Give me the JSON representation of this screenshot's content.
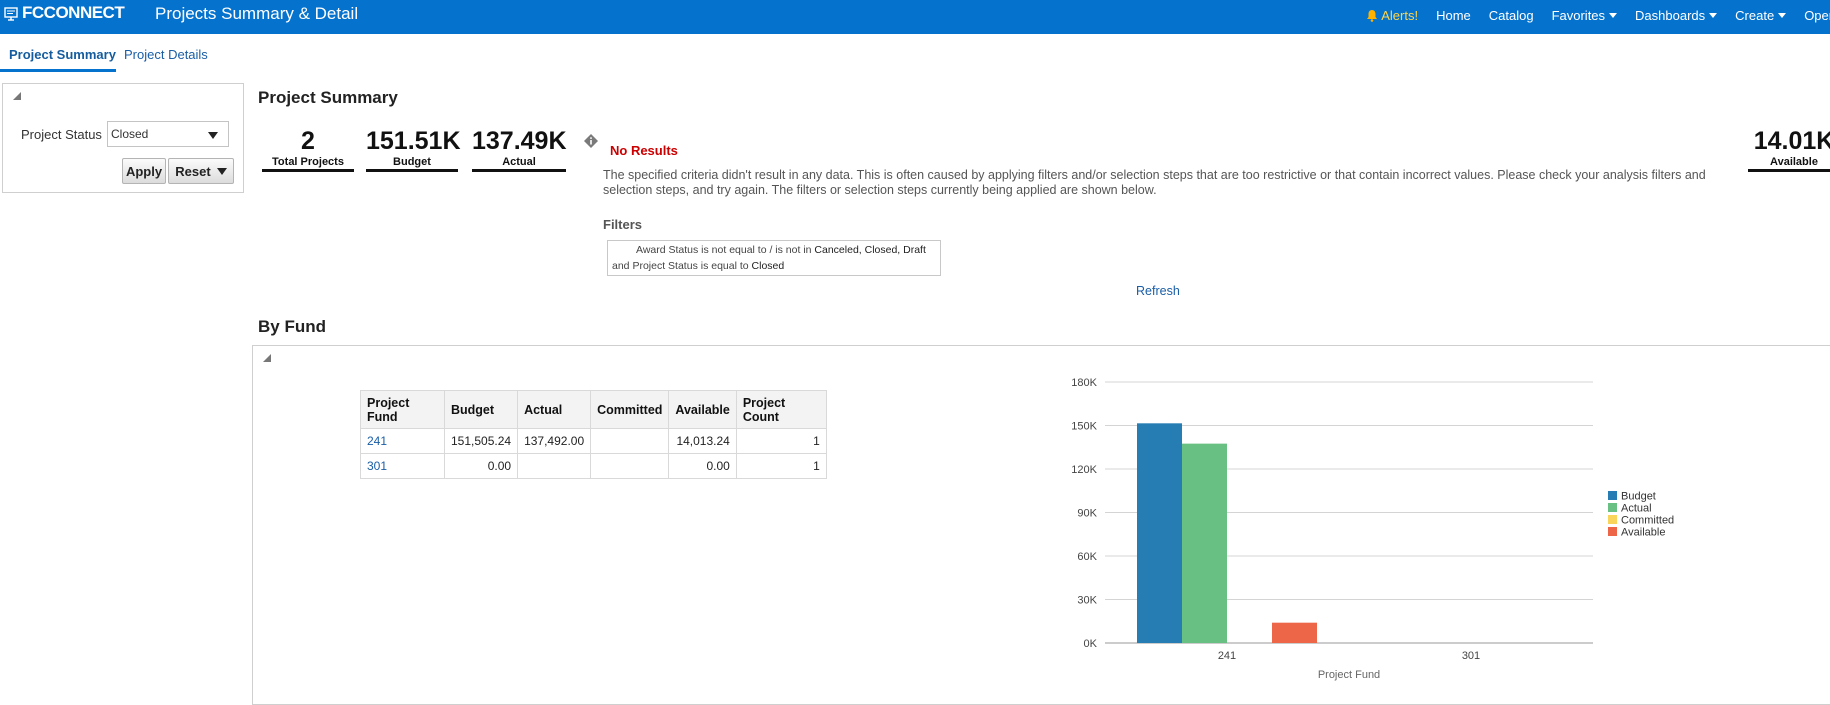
{
  "header": {
    "logo": "FCCONNECT",
    "title": "Projects Summary & Detail",
    "nav": {
      "alerts": "Alerts!",
      "home": "Home",
      "catalog": "Catalog",
      "favorites": "Favorites",
      "dashboards": "Dashboards",
      "create": "Create",
      "open": "Open"
    }
  },
  "tabs": [
    {
      "label": "Project Summary",
      "active": true
    },
    {
      "label": "Project Details",
      "active": false
    }
  ],
  "prompt": {
    "status_label": "Project Status",
    "status_value": "Closed",
    "apply_label": "Apply",
    "reset_label": "Reset"
  },
  "summary": {
    "title": "Project Summary",
    "kpis": {
      "total_projects": {
        "value": "2",
        "caption": "Total Projects"
      },
      "budget": {
        "value": "151.51K",
        "caption": "Budget"
      },
      "actual": {
        "value": "137.49K",
        "caption": "Actual"
      },
      "available": {
        "value": "14.01K",
        "caption": "Available"
      }
    },
    "no_results": {
      "title": "No Results",
      "message": "The specified criteria didn't result in any data. This is often caused by applying filters and/or selection steps that are too restrictive or that contain incorrect values. Please check your analysis filters and selection steps, and try again. The filters or selection steps currently being applied are shown below.",
      "filters_title": "Filters",
      "filter_line1_text": "Award Status is not equal to / is not in",
      "filter_line1_value": "Canceled, Closed, Draft",
      "filter_line2_and": "and",
      "filter_line2_text": "Project Status is equal to",
      "filter_line2_value": "Closed",
      "refresh": "Refresh"
    }
  },
  "by_fund": {
    "title": "By Fund",
    "table": {
      "columns": [
        "Project Fund",
        "Budget",
        "Actual",
        "Committed",
        "Available",
        "Project Count"
      ],
      "rows": [
        {
          "fund": "241",
          "budget": "151,505.24",
          "actual": "137,492.00",
          "committed": "",
          "available": "14,013.24",
          "count": "1"
        },
        {
          "fund": "301",
          "budget": "0.00",
          "actual": "",
          "committed": "",
          "available": "0.00",
          "count": "1"
        }
      ]
    }
  },
  "colors": {
    "brand": "#0572ce",
    "budget": "#267db3",
    "actual": "#68c182",
    "committed": "#fad55c",
    "available": "#ed6647"
  },
  "chart_data": {
    "type": "bar",
    "categories": [
      "241",
      "301"
    ],
    "series": [
      {
        "name": "Budget",
        "values": [
          151505.24,
          0
        ]
      },
      {
        "name": "Actual",
        "values": [
          137492.0,
          0
        ]
      },
      {
        "name": "Committed",
        "values": [
          0,
          0
        ]
      },
      {
        "name": "Available",
        "values": [
          14013.24,
          0
        ]
      }
    ],
    "xlabel": "Project Fund",
    "ylabel": "",
    "ylim": [
      0,
      180000
    ],
    "yticks": [
      {
        "value": 0,
        "label": "0K"
      },
      {
        "value": 30000,
        "label": "30K"
      },
      {
        "value": 60000,
        "label": "60K"
      },
      {
        "value": 90000,
        "label": "90K"
      },
      {
        "value": 120000,
        "label": "120K"
      },
      {
        "value": 150000,
        "label": "150K"
      },
      {
        "value": 180000,
        "label": "180K"
      }
    ],
    "grid": true,
    "legend": "right"
  }
}
